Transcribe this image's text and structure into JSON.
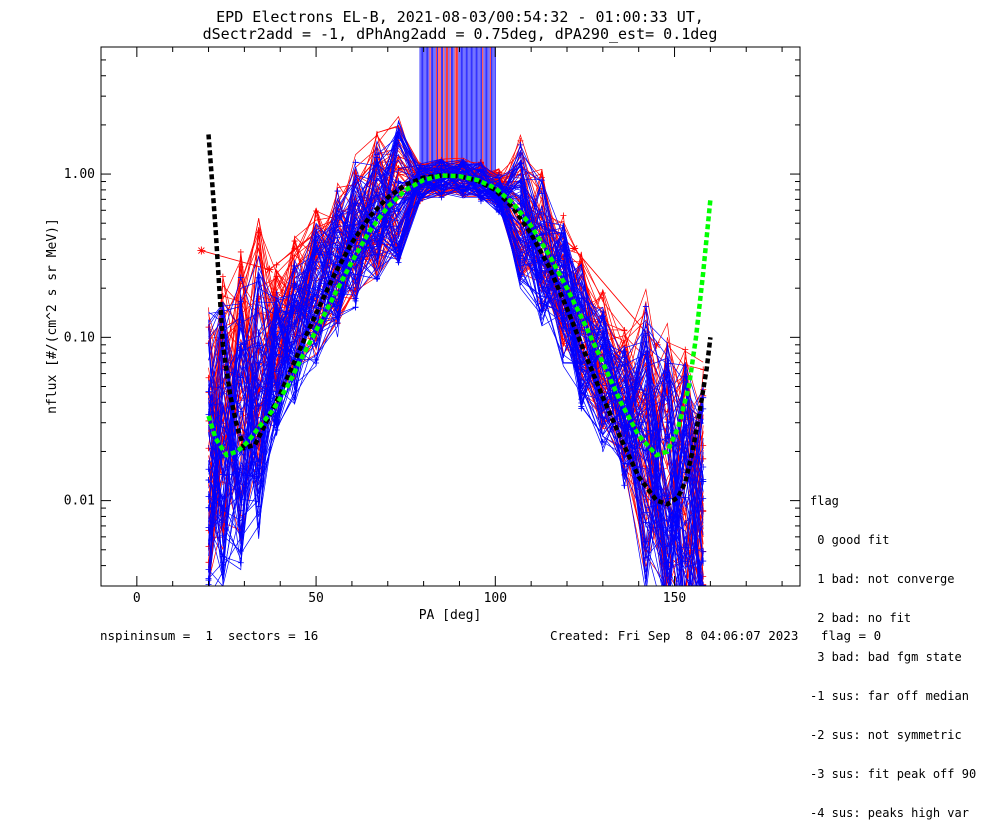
{
  "title": {
    "line1": "EPD Electrons EL-B, 2021-08-03/00:54:32 - 01:00:33 UT,",
    "line2": "dSectr2add = -1, dPhAng2add = 0.75deg, dPA290_est=   0.1deg"
  },
  "legend": {
    "header": "flag",
    "items": [
      " 0 good fit",
      " 1 bad: not converge",
      " 2 bad: no fit",
      " 3 bad: bad fgm state",
      "-1 sus: far off median",
      "-2 sus: not symmetric",
      "-3 sus: fit peak off 90",
      "-4 sus: peaks high var"
    ]
  },
  "footer": {
    "left": "nspininsum =  1  sectors = 16",
    "right": "Created: Fri Sep  8 04:06:07 2023   flag = 0"
  },
  "chart_data": {
    "type": "line",
    "xlabel": "PA [deg]",
    "ylabel": "nflux [#/(cm^2 s sr MeV)]",
    "xlim": [
      -10,
      185
    ],
    "ylim": [
      0.003,
      6.0
    ],
    "yscale": "log",
    "x_ticks": [
      0,
      50,
      100,
      150
    ],
    "x_tick_labels": [
      "0",
      "50",
      "100",
      "150"
    ],
    "y_ticks": [
      0.01,
      0.1,
      1.0
    ],
    "y_tick_labels": [
      "0.01",
      "0.10",
      "1.00"
    ],
    "grid": false,
    "colors": {
      "red": "#ff0000",
      "blue": "#0000ff",
      "black": "#000000",
      "green": "#00ff00"
    },
    "series": [
      {
        "color": "red",
        "style": "thin line with + markers",
        "x": [
          20,
          24,
          29,
          34,
          39,
          44,
          50,
          56,
          61,
          67,
          73,
          79,
          85,
          91,
          96,
          101,
          107,
          113,
          119,
          124,
          130,
          136,
          142,
          148,
          153,
          158
        ],
        "y": [
          0.02,
          0.03,
          0.045,
          0.07,
          0.1,
          0.15,
          0.22,
          0.34,
          0.48,
          0.66,
          0.8,
          0.9,
          0.95,
          0.95,
          0.92,
          0.82,
          0.62,
          0.4,
          0.22,
          0.12,
          0.07,
          0.04,
          0.025,
          0.016,
          0.012,
          0.01
        ]
      },
      {
        "color": "red",
        "style": "thin line with * markers",
        "x": [
          18,
          37,
          60,
          80,
          100,
          122,
          145
        ],
        "y": [
          0.34,
          0.26,
          0.64,
          0.95,
          0.97,
          0.35,
          0.09
        ]
      },
      {
        "color": "blue",
        "style": "thin line with + markers",
        "x": [
          20,
          24,
          29,
          34,
          39,
          44,
          50,
          56,
          61,
          67,
          73,
          79,
          85,
          91,
          96,
          101,
          107,
          113,
          119,
          124,
          130,
          136,
          142,
          148,
          153,
          158
        ],
        "y": [
          0.018,
          0.022,
          0.03,
          0.045,
          0.07,
          0.11,
          0.18,
          0.28,
          0.42,
          0.6,
          0.76,
          0.88,
          0.94,
          0.94,
          0.9,
          0.76,
          0.55,
          0.33,
          0.18,
          0.1,
          0.055,
          0.032,
          0.02,
          0.013,
          0.009,
          0.007
        ]
      },
      {
        "color": "black",
        "style": "thick dashed fit",
        "x": [
          20,
          21,
          22,
          23,
          24,
          26,
          28,
          30,
          33,
          36,
          40,
          45,
          50,
          55,
          60,
          65,
          70,
          75,
          80,
          85,
          90,
          95,
          100,
          105,
          110,
          115,
          120,
          125,
          130,
          135,
          140,
          145,
          148,
          151,
          153,
          155,
          157,
          159,
          160
        ],
        "y": [
          1.75,
          0.9,
          0.45,
          0.2,
          0.09,
          0.045,
          0.028,
          0.021,
          0.022,
          0.03,
          0.045,
          0.08,
          0.14,
          0.24,
          0.38,
          0.55,
          0.72,
          0.86,
          0.95,
          0.98,
          0.97,
          0.91,
          0.8,
          0.62,
          0.43,
          0.27,
          0.15,
          0.08,
          0.043,
          0.024,
          0.014,
          0.01,
          0.0095,
          0.0105,
          0.013,
          0.02,
          0.035,
          0.065,
          0.1
        ]
      },
      {
        "color": "green",
        "style": "thick dashed fit",
        "x": [
          20,
          22,
          25,
          28,
          31,
          34,
          38,
          42,
          46,
          50,
          55,
          60,
          65,
          70,
          75,
          80,
          85,
          90,
          95,
          100,
          105,
          110,
          115,
          120,
          125,
          130,
          135,
          140,
          145,
          148,
          151,
          154,
          156,
          158,
          160
        ],
        "y": [
          0.033,
          0.024,
          0.019,
          0.02,
          0.023,
          0.028,
          0.036,
          0.05,
          0.075,
          0.11,
          0.18,
          0.29,
          0.45,
          0.63,
          0.8,
          0.92,
          0.98,
          0.97,
          0.92,
          0.82,
          0.66,
          0.48,
          0.32,
          0.2,
          0.12,
          0.07,
          0.04,
          0.025,
          0.019,
          0.02,
          0.028,
          0.05,
          0.1,
          0.25,
          0.7
        ]
      }
    ]
  }
}
